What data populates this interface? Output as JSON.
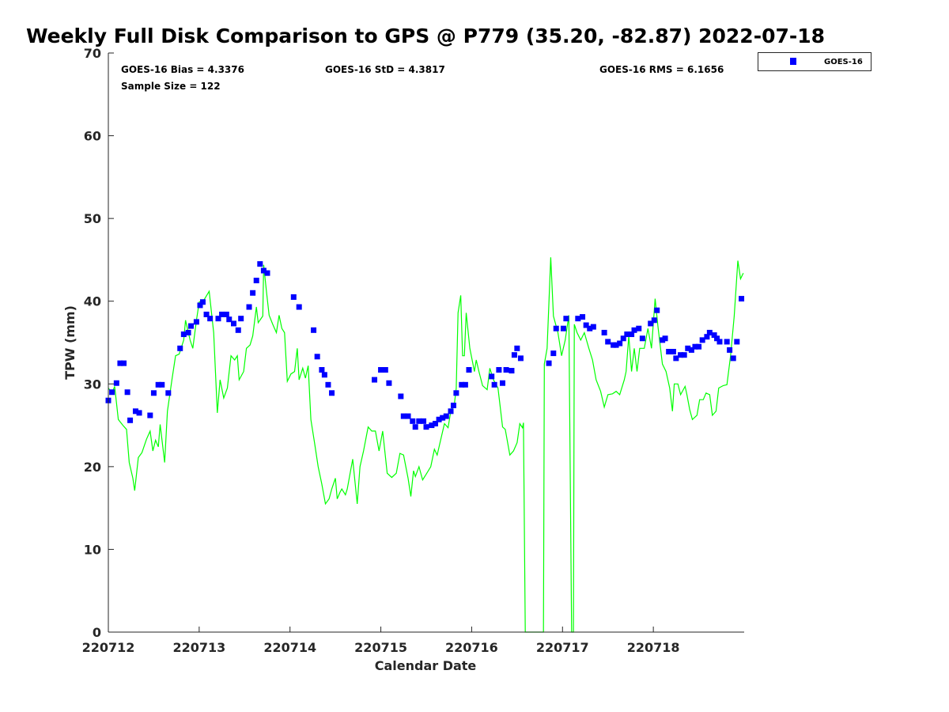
{
  "chart_data": {
    "type": "scatter",
    "title": "Weekly Full Disk Comparison to GPS @ P779 (35.20, -82.87) 2022-07-18",
    "xlabel": "Calendar Date",
    "ylabel": "TPW (mm)",
    "x_units": "days since 220712",
    "xlim": [
      0,
      7
    ],
    "ylim": [
      0,
      70
    ],
    "xticks": [
      0,
      1,
      2,
      3,
      4,
      5,
      6
    ],
    "xtick_labels": [
      "220712",
      "220713",
      "220714",
      "220715",
      "220716",
      "220717",
      "220718"
    ],
    "yticks": [
      0,
      10,
      20,
      30,
      40,
      50,
      60,
      70
    ],
    "ytick_labels": [
      "0",
      "10",
      "20",
      "30",
      "40",
      "50",
      "60",
      "70"
    ],
    "grid": false,
    "legend": {
      "placement": "top-right outside",
      "entries": [
        "GOES-16"
      ]
    },
    "stats": {
      "bias": "GOES-16 Bias = 4.3376",
      "std": "GOES-16 StD = 4.3817",
      "rms": "GOES-16 RMS = 6.1656",
      "sample": "Sample Size = 122"
    },
    "series": [
      {
        "name": "GOES-16",
        "kind": "scatter",
        "color": "#0000ff",
        "x": [
          0,
          0.04,
          0.09,
          0.13,
          0.17,
          0.21,
          0.24,
          0.3,
          0.34,
          0.46,
          0.5,
          0.55,
          0.59,
          0.66,
          0.79,
          0.83,
          0.88,
          0.91,
          0.97,
          1.01,
          1.04,
          1.08,
          1.12,
          1.21,
          1.25,
          1.3,
          1.33,
          1.38,
          1.43,
          1.46,
          1.55,
          1.59,
          1.63,
          1.67,
          1.71,
          1.75,
          2.04,
          2.1,
          2.26,
          2.3,
          2.35,
          2.38,
          2.42,
          2.46,
          2.93,
          3.0,
          3.05,
          3.09,
          3.22,
          3.25,
          3.3,
          3.35,
          3.38,
          3.42,
          3.47,
          3.5,
          3.56,
          3.6,
          3.64,
          3.68,
          3.72,
          3.77,
          3.8,
          3.83,
          3.89,
          3.93,
          3.97,
          4.22,
          4.25,
          4.3,
          4.34,
          4.38,
          4.44,
          4.47,
          4.5,
          4.54,
          4.85,
          4.9,
          4.93,
          5.01,
          5.04,
          5.17,
          5.22,
          5.26,
          5.3,
          5.34,
          5.46,
          5.5,
          5.56,
          5.59,
          5.63,
          5.67,
          5.71,
          5.76,
          5.79,
          5.84,
          5.88,
          5.97,
          6.01,
          6.04,
          6.1,
          6.13,
          6.17,
          6.22,
          6.25,
          6.3,
          6.34,
          6.38,
          6.42,
          6.46,
          6.5,
          6.54,
          6.59,
          6.62,
          6.67,
          6.7,
          6.73,
          6.81,
          6.84,
          6.88,
          6.92,
          6.97
        ],
        "y": [
          28.0,
          29.0,
          30.1,
          32.5,
          32.5,
          29.0,
          25.6,
          26.7,
          26.5,
          26.2,
          28.9,
          29.9,
          29.9,
          28.9,
          34.3,
          36.0,
          36.2,
          37.0,
          37.5,
          39.5,
          39.9,
          38.4,
          37.9,
          37.9,
          38.4,
          38.4,
          37.8,
          37.3,
          36.5,
          37.9,
          39.3,
          41.0,
          42.5,
          44.5,
          43.7,
          43.4,
          40.5,
          39.3,
          36.5,
          33.3,
          31.7,
          31.1,
          29.9,
          28.9,
          30.5,
          31.7,
          31.7,
          30.1,
          28.5,
          26.1,
          26.1,
          25.5,
          24.8,
          25.5,
          25.5,
          24.8,
          25.0,
          25.2,
          25.7,
          25.9,
          26.1,
          26.7,
          27.4,
          28.9,
          29.9,
          29.9,
          31.7,
          30.9,
          29.9,
          31.7,
          30.1,
          31.7,
          31.6,
          33.5,
          34.3,
          33.1,
          32.5,
          33.7,
          36.7,
          36.7,
          37.9,
          37.9,
          38.1,
          37.1,
          36.7,
          36.9,
          36.2,
          35.1,
          34.7,
          34.7,
          34.9,
          35.5,
          36.0,
          36.0,
          36.5,
          36.7,
          35.5,
          37.3,
          37.7,
          38.9,
          35.3,
          35.5,
          33.9,
          33.9,
          33.1,
          33.5,
          33.5,
          34.3,
          34.1,
          34.5,
          34.5,
          35.3,
          35.7,
          36.2,
          35.9,
          35.5,
          35.1,
          35.1,
          34.1,
          33.1,
          35.1,
          40.3
        ]
      },
      {
        "name": "GPS",
        "kind": "line",
        "color": "#00ff00",
        "x": [
          0,
          0.04,
          0.07,
          0.11,
          0.16,
          0.2,
          0.23,
          0.27,
          0.29,
          0.33,
          0.37,
          0.42,
          0.46,
          0.49,
          0.52,
          0.55,
          0.57,
          0.62,
          0.65,
          0.7,
          0.74,
          0.78,
          0.83,
          0.85,
          0.9,
          0.93,
          0.97,
          1.0,
          1.05,
          1.11,
          1.16,
          1.2,
          1.23,
          1.27,
          1.31,
          1.35,
          1.39,
          1.42,
          1.44,
          1.49,
          1.52,
          1.56,
          1.59,
          1.63,
          1.65,
          1.7,
          1.71,
          1.74,
          1.77,
          1.81,
          1.85,
          1.88,
          1.91,
          1.94,
          1.97,
          2.01,
          2.05,
          2.08,
          2.1,
          2.14,
          2.17,
          2.2,
          2.23,
          2.27,
          2.31,
          2.35,
          2.39,
          2.43,
          2.46,
          2.5,
          2.52,
          2.55,
          2.57,
          2.61,
          2.63,
          2.69,
          2.74,
          2.77,
          2.81,
          2.86,
          2.9,
          2.94,
          2.98,
          3.02,
          3.07,
          3.12,
          3.17,
          3.21,
          3.25,
          3.3,
          3.33,
          3.36,
          3.38,
          3.42,
          3.46,
          3.5,
          3.55,
          3.59,
          3.62,
          3.66,
          3.7,
          3.74,
          3.77,
          3.81,
          3.83,
          3.85,
          3.88,
          3.9,
          3.92,
          3.94,
          3.98,
          4.03,
          4.05,
          4.08,
          4.12,
          4.17,
          4.2,
          4.24,
          4.29,
          4.34,
          4.37,
          4.42,
          4.46,
          4.5,
          4.53,
          4.56,
          4.57,
          4.59,
          4.79,
          4.8,
          4.83,
          4.87,
          4.9,
          4.95,
          4.99,
          5.03,
          5.07,
          5.1,
          5.12,
          5.13,
          5.16,
          5.2,
          5.24,
          5.29,
          5.33,
          5.37,
          5.42,
          5.46,
          5.5,
          5.55,
          5.59,
          5.63,
          5.68,
          5.7,
          5.73,
          5.76,
          5.79,
          5.82,
          5.85,
          5.9,
          5.94,
          5.98,
          6.02,
          6.05,
          6.1,
          6.14,
          6.18,
          6.21,
          6.23,
          6.27,
          6.3,
          6.35,
          6.37,
          6.4,
          6.43,
          6.48,
          6.51,
          6.55,
          6.58,
          6.62,
          6.65,
          6.69,
          6.72,
          6.77,
          6.81,
          6.85,
          6.89,
          6.93,
          6.96,
          6.99
        ],
        "y": [
          29.5,
          28.9,
          29.7,
          25.7,
          25.0,
          24.5,
          20.5,
          18.6,
          17.1,
          21.1,
          21.7,
          23.3,
          24.3,
          21.9,
          23.2,
          22.4,
          25.1,
          20.5,
          26.7,
          30.5,
          33.4,
          33.6,
          35.3,
          37.7,
          35.3,
          34.3,
          37.7,
          39.9,
          40.1,
          41.2,
          36.2,
          26.5,
          30.5,
          28.3,
          29.5,
          33.4,
          32.9,
          33.4,
          30.5,
          31.5,
          34.3,
          34.7,
          35.8,
          39.3,
          37.4,
          38.2,
          44.4,
          41.2,
          38.3,
          37.2,
          36.2,
          38.3,
          36.7,
          36.2,
          30.3,
          31.2,
          31.5,
          34.3,
          30.5,
          31.9,
          30.7,
          32.2,
          25.7,
          22.9,
          20.0,
          17.9,
          15.5,
          16.1,
          17.3,
          18.6,
          16.1,
          16.9,
          17.3,
          16.6,
          17.3,
          20.9,
          15.5,
          20.0,
          21.9,
          24.8,
          24.3,
          24.3,
          21.9,
          24.3,
          19.2,
          18.7,
          19.2,
          21.6,
          21.4,
          18.6,
          16.4,
          19.5,
          18.8,
          20.0,
          18.4,
          19.1,
          20.0,
          22.1,
          21.4,
          23.3,
          25.2,
          24.7,
          26.7,
          27.6,
          29.5,
          38.6,
          40.7,
          33.4,
          33.4,
          38.6,
          34.3,
          31.5,
          32.9,
          31.5,
          29.8,
          29.3,
          31.9,
          30.5,
          29.5,
          24.8,
          24.5,
          21.4,
          21.9,
          22.9,
          25.2,
          24.7,
          25.3,
          0,
          0,
          32.4,
          34.3,
          45.3,
          38.2,
          36.2,
          33.4,
          35.3,
          38.3,
          0,
          0,
          37.2,
          36.2,
          35.3,
          36.2,
          34.3,
          32.9,
          30.5,
          29.1,
          27.2,
          28.7,
          28.8,
          29.1,
          28.7,
          30.5,
          31.5,
          35.8,
          31.5,
          34.3,
          31.5,
          34.3,
          34.3,
          36.7,
          34.3,
          40.3,
          37.0,
          32.4,
          31.5,
          29.5,
          26.7,
          30.0,
          30.0,
          28.7,
          29.7,
          28.7,
          26.9,
          25.7,
          26.2,
          28.1,
          28.1,
          28.9,
          28.7,
          26.2,
          26.7,
          29.5,
          29.8,
          29.9,
          33.4,
          38.2,
          44.9,
          42.7,
          43.4
        ]
      }
    ]
  }
}
